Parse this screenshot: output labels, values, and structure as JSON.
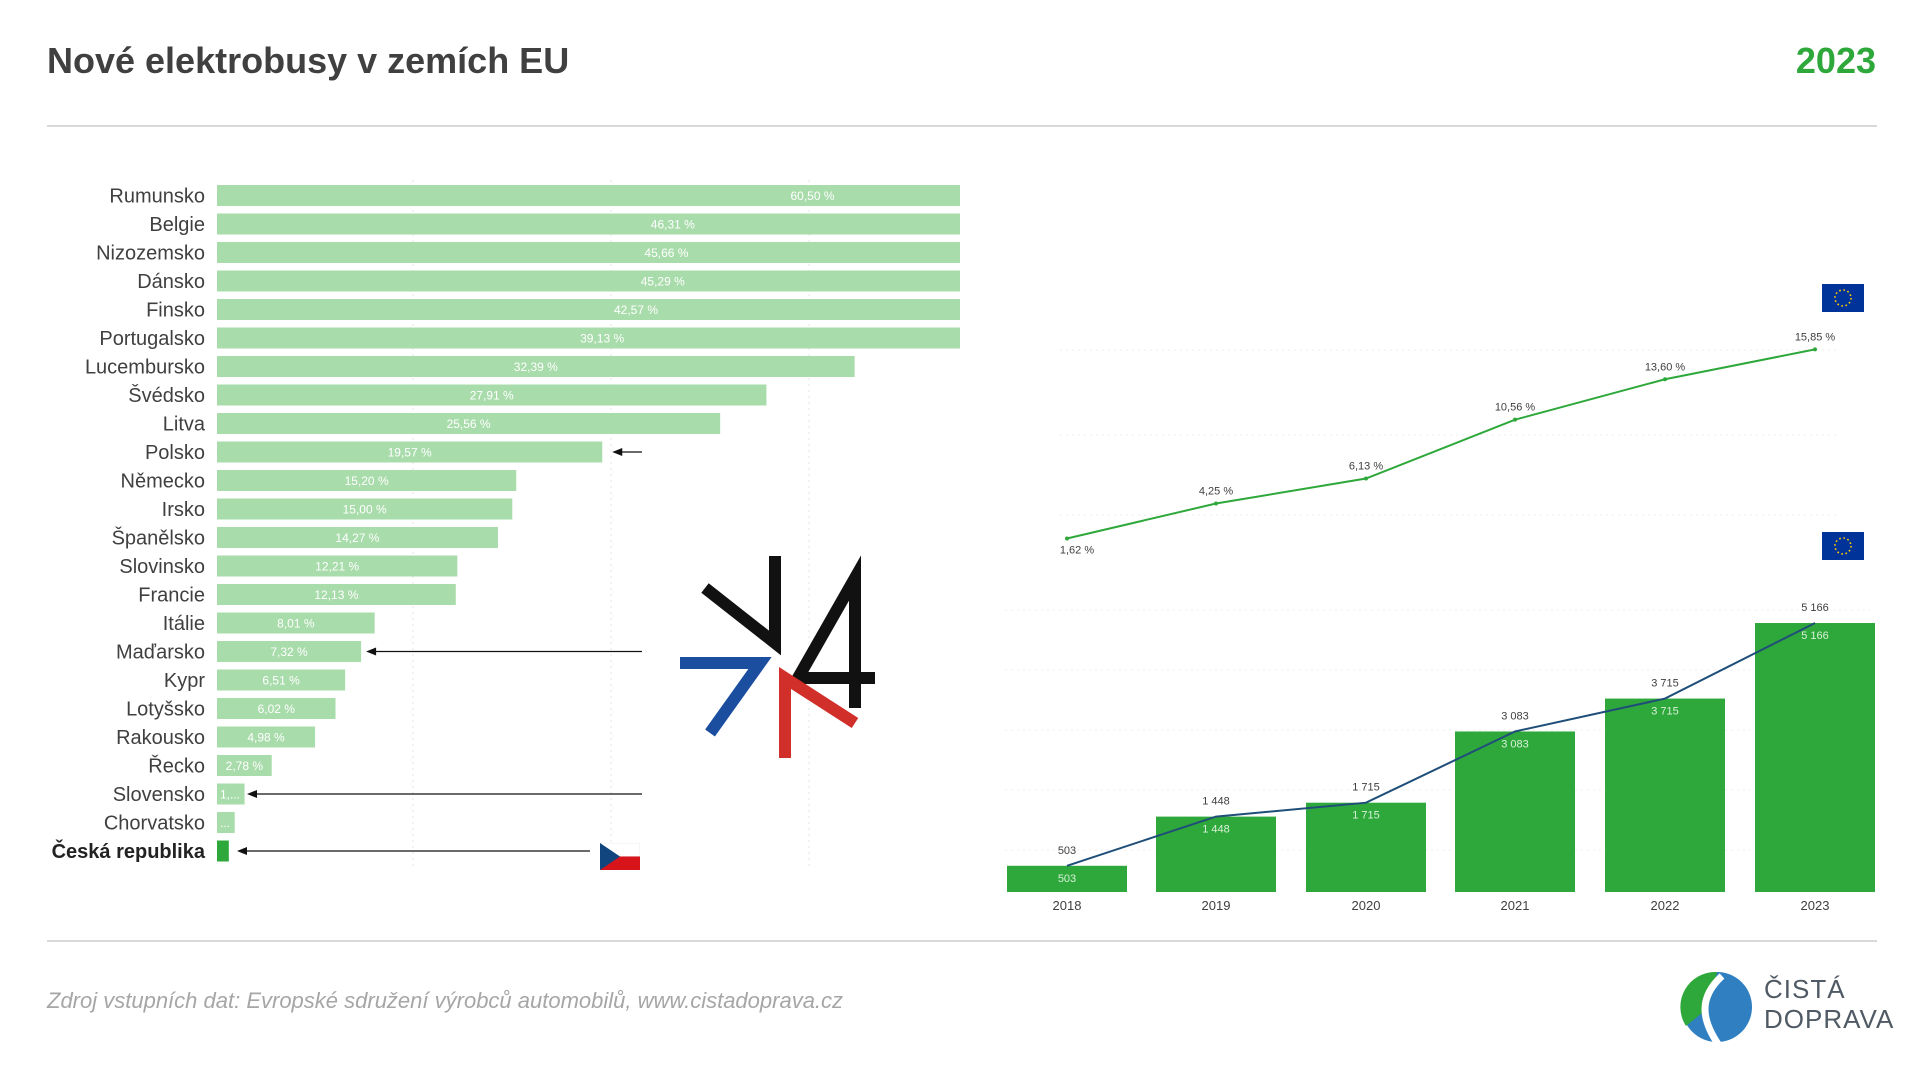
{
  "header": {
    "title": "Nové elektrobusy v zemích EU",
    "year": "2023"
  },
  "footer": {
    "source": "Zdroj vstupních dat: Evropské sdružení výrobců automobilů, www.cistadoprava.cz",
    "logo_line1": "ČISTÁ",
    "logo_line2": "DOPRAVA"
  },
  "colors": {
    "bar_light": "#a9dcab",
    "bar_dark": "#2ea83a",
    "line_green": "#2ea83a",
    "line_blue": "#1f4e79",
    "title": "#404040",
    "accent": "#2ea83a"
  },
  "icons": [
    "v4-logo",
    "eu-flag-icon",
    "czech-flag-icon",
    "cista-doprava-logo"
  ],
  "chart_data": [
    {
      "type": "bar",
      "orientation": "horizontal",
      "unit": "%",
      "categories": [
        "Rumunsko",
        "Belgie",
        "Nizozemsko",
        "Dánsko",
        "Finsko",
        "Portugalsko",
        "Lucembursko",
        "Švédsko",
        "Litva",
        "Polsko",
        "Německo",
        "Irsko",
        "Španělsko",
        "Slovinsko",
        "Francie",
        "Itálie",
        "Maďarsko",
        "Kypr",
        "Lotyšsko",
        "Rakousko",
        "Řecko",
        "Slovensko",
        "Chorvatsko",
        "Česká republika"
      ],
      "values": [
        60.5,
        46.31,
        45.66,
        45.29,
        42.57,
        39.13,
        32.39,
        27.91,
        25.56,
        19.57,
        15.2,
        15.0,
        14.27,
        12.21,
        12.13,
        8.01,
        7.32,
        6.51,
        6.02,
        4.98,
        2.78,
        1.4,
        0.9,
        0.6
      ],
      "labels": [
        "60,50 %",
        "46,31 %",
        "45,66 %",
        "45,29 %",
        "42,57 %",
        "39,13 %",
        "32,39 %",
        "27,91 %",
        "25,56 %",
        "19,57 %",
        "15,20 %",
        "15,00 %",
        "14,27 %",
        "12,21 %",
        "12,13 %",
        "8,01 %",
        "7,32 %",
        "6,51 %",
        "6,02 %",
        "4,98 %",
        "2,78 %",
        "1,...",
        "...",
        ""
      ],
      "highlighted": [
        "Polsko",
        "Maďarsko",
        "Slovensko",
        "Česká republika"
      ],
      "xlim": [
        0,
        65
      ]
    },
    {
      "type": "line",
      "x": [
        "2018",
        "2019",
        "2020",
        "2021",
        "2022",
        "2023"
      ],
      "values": [
        1.62,
        4.25,
        6.13,
        10.56,
        13.6,
        15.85
      ],
      "labels": [
        "1,62 %",
        "4,25 %",
        "6,13 %",
        "10,56 %",
        "13,60 %",
        "15,85 %"
      ],
      "ylim": [
        0,
        18
      ]
    },
    {
      "type": "bar",
      "categories": [
        "2018",
        "2019",
        "2020",
        "2021",
        "2022",
        "2023"
      ],
      "values": [
        503,
        1448,
        1715,
        3083,
        3715,
        5166
      ],
      "labels": [
        "503",
        "1 448",
        "1 715",
        "3 083",
        "3 715",
        "5 166"
      ],
      "line_overlay": true,
      "ylim": [
        0,
        5800
      ]
    }
  ]
}
